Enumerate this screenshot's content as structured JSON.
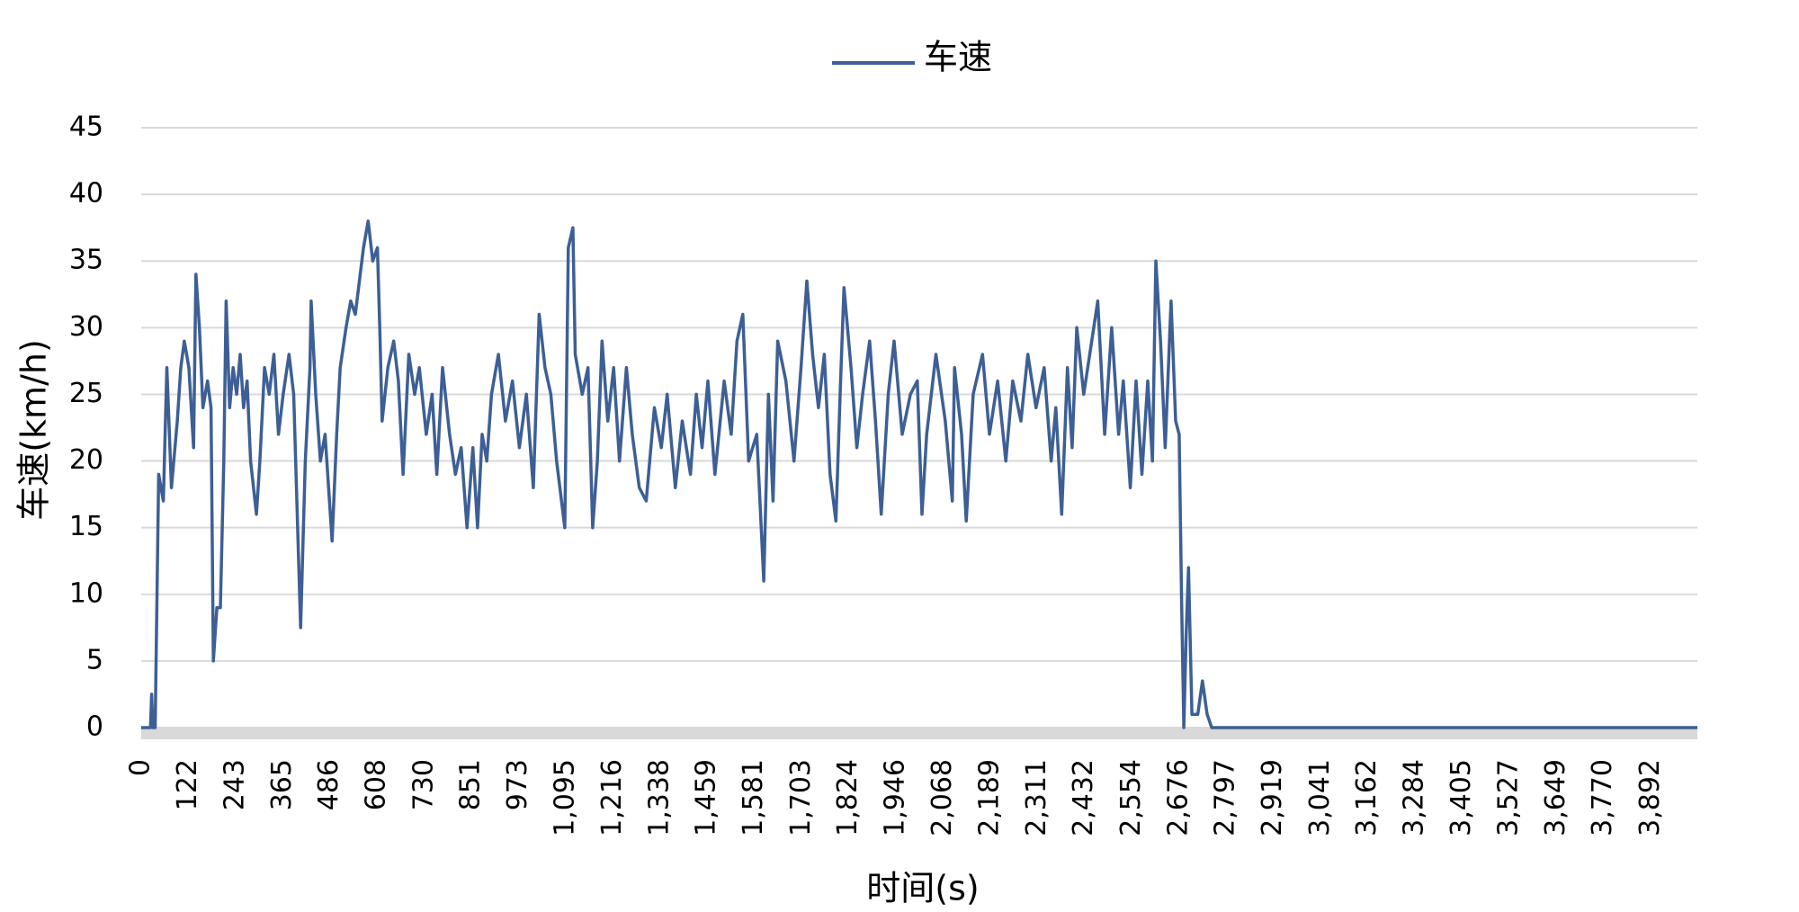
{
  "chart_data": {
    "type": "line",
    "y_axis_label": "车速(km/h)",
    "x_axis_label": "时间(s)",
    "legend_position": "top",
    "grid": true,
    "xlim": [
      0,
      4012
    ],
    "ylim": [
      0,
      45
    ],
    "yticks": [
      0,
      5,
      10,
      15,
      20,
      25,
      30,
      35,
      40,
      45
    ],
    "xticks": [
      0,
      122,
      243,
      365,
      486,
      608,
      730,
      851,
      973,
      {
        "value": 1095,
        "label": "1,095"
      },
      {
        "value": 1216,
        "label": "1,216"
      },
      {
        "value": 1338,
        "label": "1,338"
      },
      {
        "value": 1459,
        "label": "1,459"
      },
      {
        "value": 1581,
        "label": "1,581"
      },
      {
        "value": 1703,
        "label": "1,703"
      },
      {
        "value": 1824,
        "label": "1,824"
      },
      {
        "value": 1946,
        "label": "1,946"
      },
      {
        "value": 2068,
        "label": "2,068"
      },
      {
        "value": 2189,
        "label": "2,189"
      },
      {
        "value": 2311,
        "label": "2,311"
      },
      {
        "value": 2432,
        "label": "2,432"
      },
      {
        "value": 2554,
        "label": "2,554"
      },
      {
        "value": 2676,
        "label": "2,676"
      },
      {
        "value": 2797,
        "label": "2,797"
      },
      {
        "value": 2919,
        "label": "2,919"
      },
      {
        "value": 3041,
        "label": "3,041"
      },
      {
        "value": 3162,
        "label": "3,162"
      },
      {
        "value": 3284,
        "label": "3,284"
      },
      {
        "value": 3405,
        "label": "3,405"
      },
      {
        "value": 3527,
        "label": "3,527"
      },
      {
        "value": 3649,
        "label": "3,649"
      },
      {
        "value": 3770,
        "label": "3,770"
      },
      {
        "value": 3892,
        "label": "3,892"
      }
    ],
    "series": [
      {
        "name": "车速",
        "color": "#3d5f95",
        "x": [
          0,
          15,
          24,
          27,
          30,
          36,
          45,
          57,
          66,
          78,
          93,
          102,
          111,
          123,
          135,
          141,
          150,
          159,
          171,
          180,
          186,
          195,
          204,
          213,
          219,
          228,
          237,
          246,
          255,
          264,
          273,
          282,
          297,
          306,
          318,
          330,
          342,
          354,
          366,
          381,
          393,
          411,
          423,
          435,
          438,
          450,
          462,
          474,
          492,
          504,
          513,
          528,
          540,
          552,
          573,
          585,
          597,
          609,
          615,
          621,
          636,
          651,
          663,
          675,
          690,
          705,
          717,
          735,
          750,
          762,
          777,
          795,
          810,
          825,
          840,
          855,
          867,
          879,
          891,
          903,
          921,
          939,
          957,
          975,
          993,
          1011,
          1026,
          1041,
          1056,
          1071,
          1092,
          1101,
          1113,
          1119,
          1137,
          1152,
          1164,
          1176,
          1188,
          1203,
          1218,
          1233,
          1251,
          1266,
          1284,
          1302,
          1323,
          1341,
          1356,
          1377,
          1395,
          1416,
          1431,
          1446,
          1461,
          1479,
          1503,
          1521,
          1536,
          1551,
          1566,
          1587,
          1605,
          1617,
          1629,
          1641,
          1662,
          1683,
          1701,
          1716,
          1731,
          1746,
          1761,
          1776,
          1791,
          1803,
          1812,
          1830,
          1845,
          1860,
          1878,
          1893,
          1908,
          1926,
          1941,
          1962,
          1983,
          2001,
          2013,
          2025,
          2049,
          2073,
          2091,
          2097,
          2115,
          2127,
          2145,
          2169,
          2187,
          2208,
          2229,
          2247,
          2268,
          2286,
          2307,
          2328,
          2346,
          2358,
          2373,
          2388,
          2400,
          2412,
          2430,
          2466,
          2484,
          2502,
          2520,
          2532,
          2550,
          2565,
          2580,
          2595,
          2607,
          2616,
          2628,
          2640,
          2655,
          2667,
          2676,
          2682,
          2688,
          2694,
          2700,
          2709,
          2724,
          2736,
          2748,
          2760,
          4012
        ],
        "values": [
          0,
          0,
          0,
          2.5,
          0,
          0,
          19,
          17,
          27,
          18,
          23,
          27,
          29,
          27,
          21,
          34,
          30,
          24,
          26,
          24,
          5,
          9,
          9,
          20,
          32,
          24,
          27,
          25,
          28,
          24,
          26,
          20,
          16,
          20,
          27,
          25,
          28,
          22,
          25,
          28,
          25,
          7.5,
          20,
          27,
          32,
          25,
          20,
          22,
          14,
          22,
          27,
          30,
          32,
          31,
          36,
          38,
          35,
          36,
          30,
          23,
          27,
          29,
          26,
          19,
          28,
          25,
          27,
          22,
          25,
          19,
          27,
          22,
          19,
          21,
          15,
          21,
          15,
          22,
          20,
          25,
          28,
          23,
          26,
          21,
          25,
          18,
          31,
          27,
          25,
          20,
          15,
          36,
          37.5,
          28,
          25,
          27,
          15,
          20,
          29,
          23,
          27,
          20,
          27,
          22,
          18,
          17,
          24,
          21,
          25,
          18,
          23,
          19,
          25,
          21,
          26,
          19,
          26,
          22,
          29,
          31,
          20,
          22,
          11,
          25,
          17,
          29,
          26,
          20,
          27,
          33.5,
          28,
          24,
          28,
          19,
          15.5,
          26,
          33,
          27,
          21,
          25,
          29,
          23,
          16,
          25,
          29,
          22,
          25,
          26,
          16,
          22,
          28,
          23,
          17,
          27,
          22,
          15.5,
          25,
          28,
          22,
          26,
          20,
          26,
          23,
          28,
          24,
          27,
          20,
          24,
          16,
          27,
          21,
          30,
          25,
          32,
          22,
          30,
          22,
          26,
          18,
          26,
          19,
          26,
          20,
          35,
          29,
          21,
          32,
          23,
          22,
          10,
          0,
          7,
          12,
          1,
          1,
          3.5,
          1,
          0,
          0
        ]
      }
    ]
  }
}
